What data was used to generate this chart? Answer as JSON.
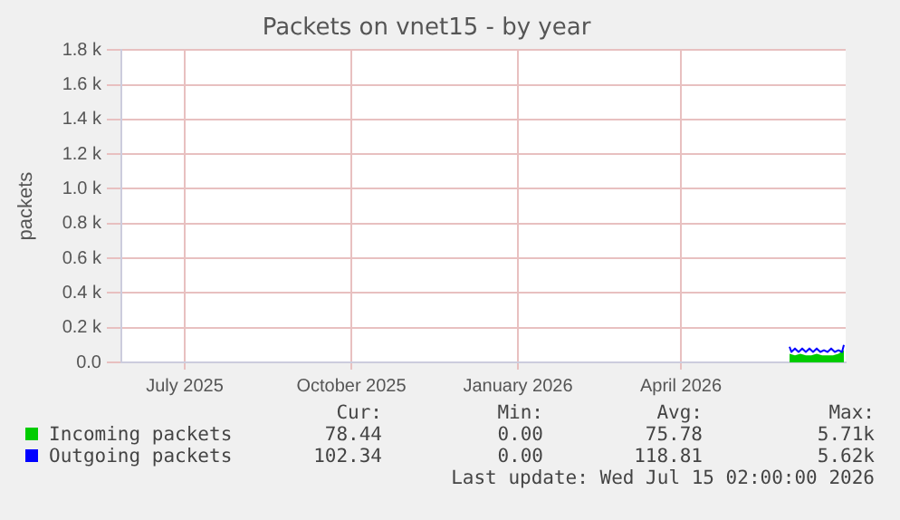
{
  "chart_data": {
    "type": "area",
    "title": "Packets on vnet15 - by year",
    "ylabel": "packets",
    "xlim": [
      "2025-06-10",
      "2026-07-15"
    ],
    "xticks": [
      {
        "value": "2025-07-15",
        "label": "July 2025"
      },
      {
        "value": "2025-10-15",
        "label": "October 2025"
      },
      {
        "value": "2026-01-15",
        "label": "January 2026"
      },
      {
        "value": "2026-04-15",
        "label": "April 2026"
      }
    ],
    "ylim": [
      0,
      1800
    ],
    "yticks": [
      {
        "value": 0,
        "label": "0.0"
      },
      {
        "value": 200,
        "label": "0.2 k"
      },
      {
        "value": 400,
        "label": "0.4 k"
      },
      {
        "value": 600,
        "label": "0.6 k"
      },
      {
        "value": 800,
        "label": "0.8 k"
      },
      {
        "value": 1000,
        "label": "1.0 k"
      },
      {
        "value": 1200,
        "label": "1.2 k"
      },
      {
        "value": 1400,
        "label": "1.4 k"
      },
      {
        "value": 1600,
        "label": "1.6 k"
      },
      {
        "value": 1800,
        "label": "1.8 k"
      }
    ],
    "grid": true,
    "legend": "bottom",
    "series": [
      {
        "name": "Incoming packets",
        "type": "area",
        "color": "#00cc00",
        "x": [
          "2026-06-14",
          "2026-06-17",
          "2026-06-20",
          "2026-06-23",
          "2026-06-26",
          "2026-06-29",
          "2026-07-02",
          "2026-07-05",
          "2026-07-08",
          "2026-07-11",
          "2026-07-14"
        ],
        "values": [
          50,
          40,
          50,
          40,
          40,
          50,
          40,
          40,
          40,
          50,
          70
        ]
      },
      {
        "name": "Outgoing packets",
        "type": "line",
        "color": "#0000ff",
        "x": [
          "2026-06-14",
          "2026-06-15",
          "2026-06-17",
          "2026-06-19",
          "2026-06-21",
          "2026-06-23",
          "2026-06-25",
          "2026-06-27",
          "2026-06-29",
          "2026-07-01",
          "2026-07-03",
          "2026-07-05",
          "2026-07-07",
          "2026-07-09",
          "2026-07-11",
          "2026-07-13",
          "2026-07-14"
        ],
        "values": [
          90,
          60,
          80,
          60,
          80,
          60,
          80,
          60,
          80,
          60,
          70,
          60,
          80,
          60,
          70,
          60,
          100
        ]
      }
    ],
    "annotations": [
      "Cur:",
      "Min:",
      "Avg:",
      "Max:",
      "78.44",
      "0.00",
      "75.78",
      "5.71k",
      "102.34",
      "0.00",
      "118.81",
      "5.62k",
      "Last update: Wed Jul 15 02:00:00 2026"
    ]
  }
}
